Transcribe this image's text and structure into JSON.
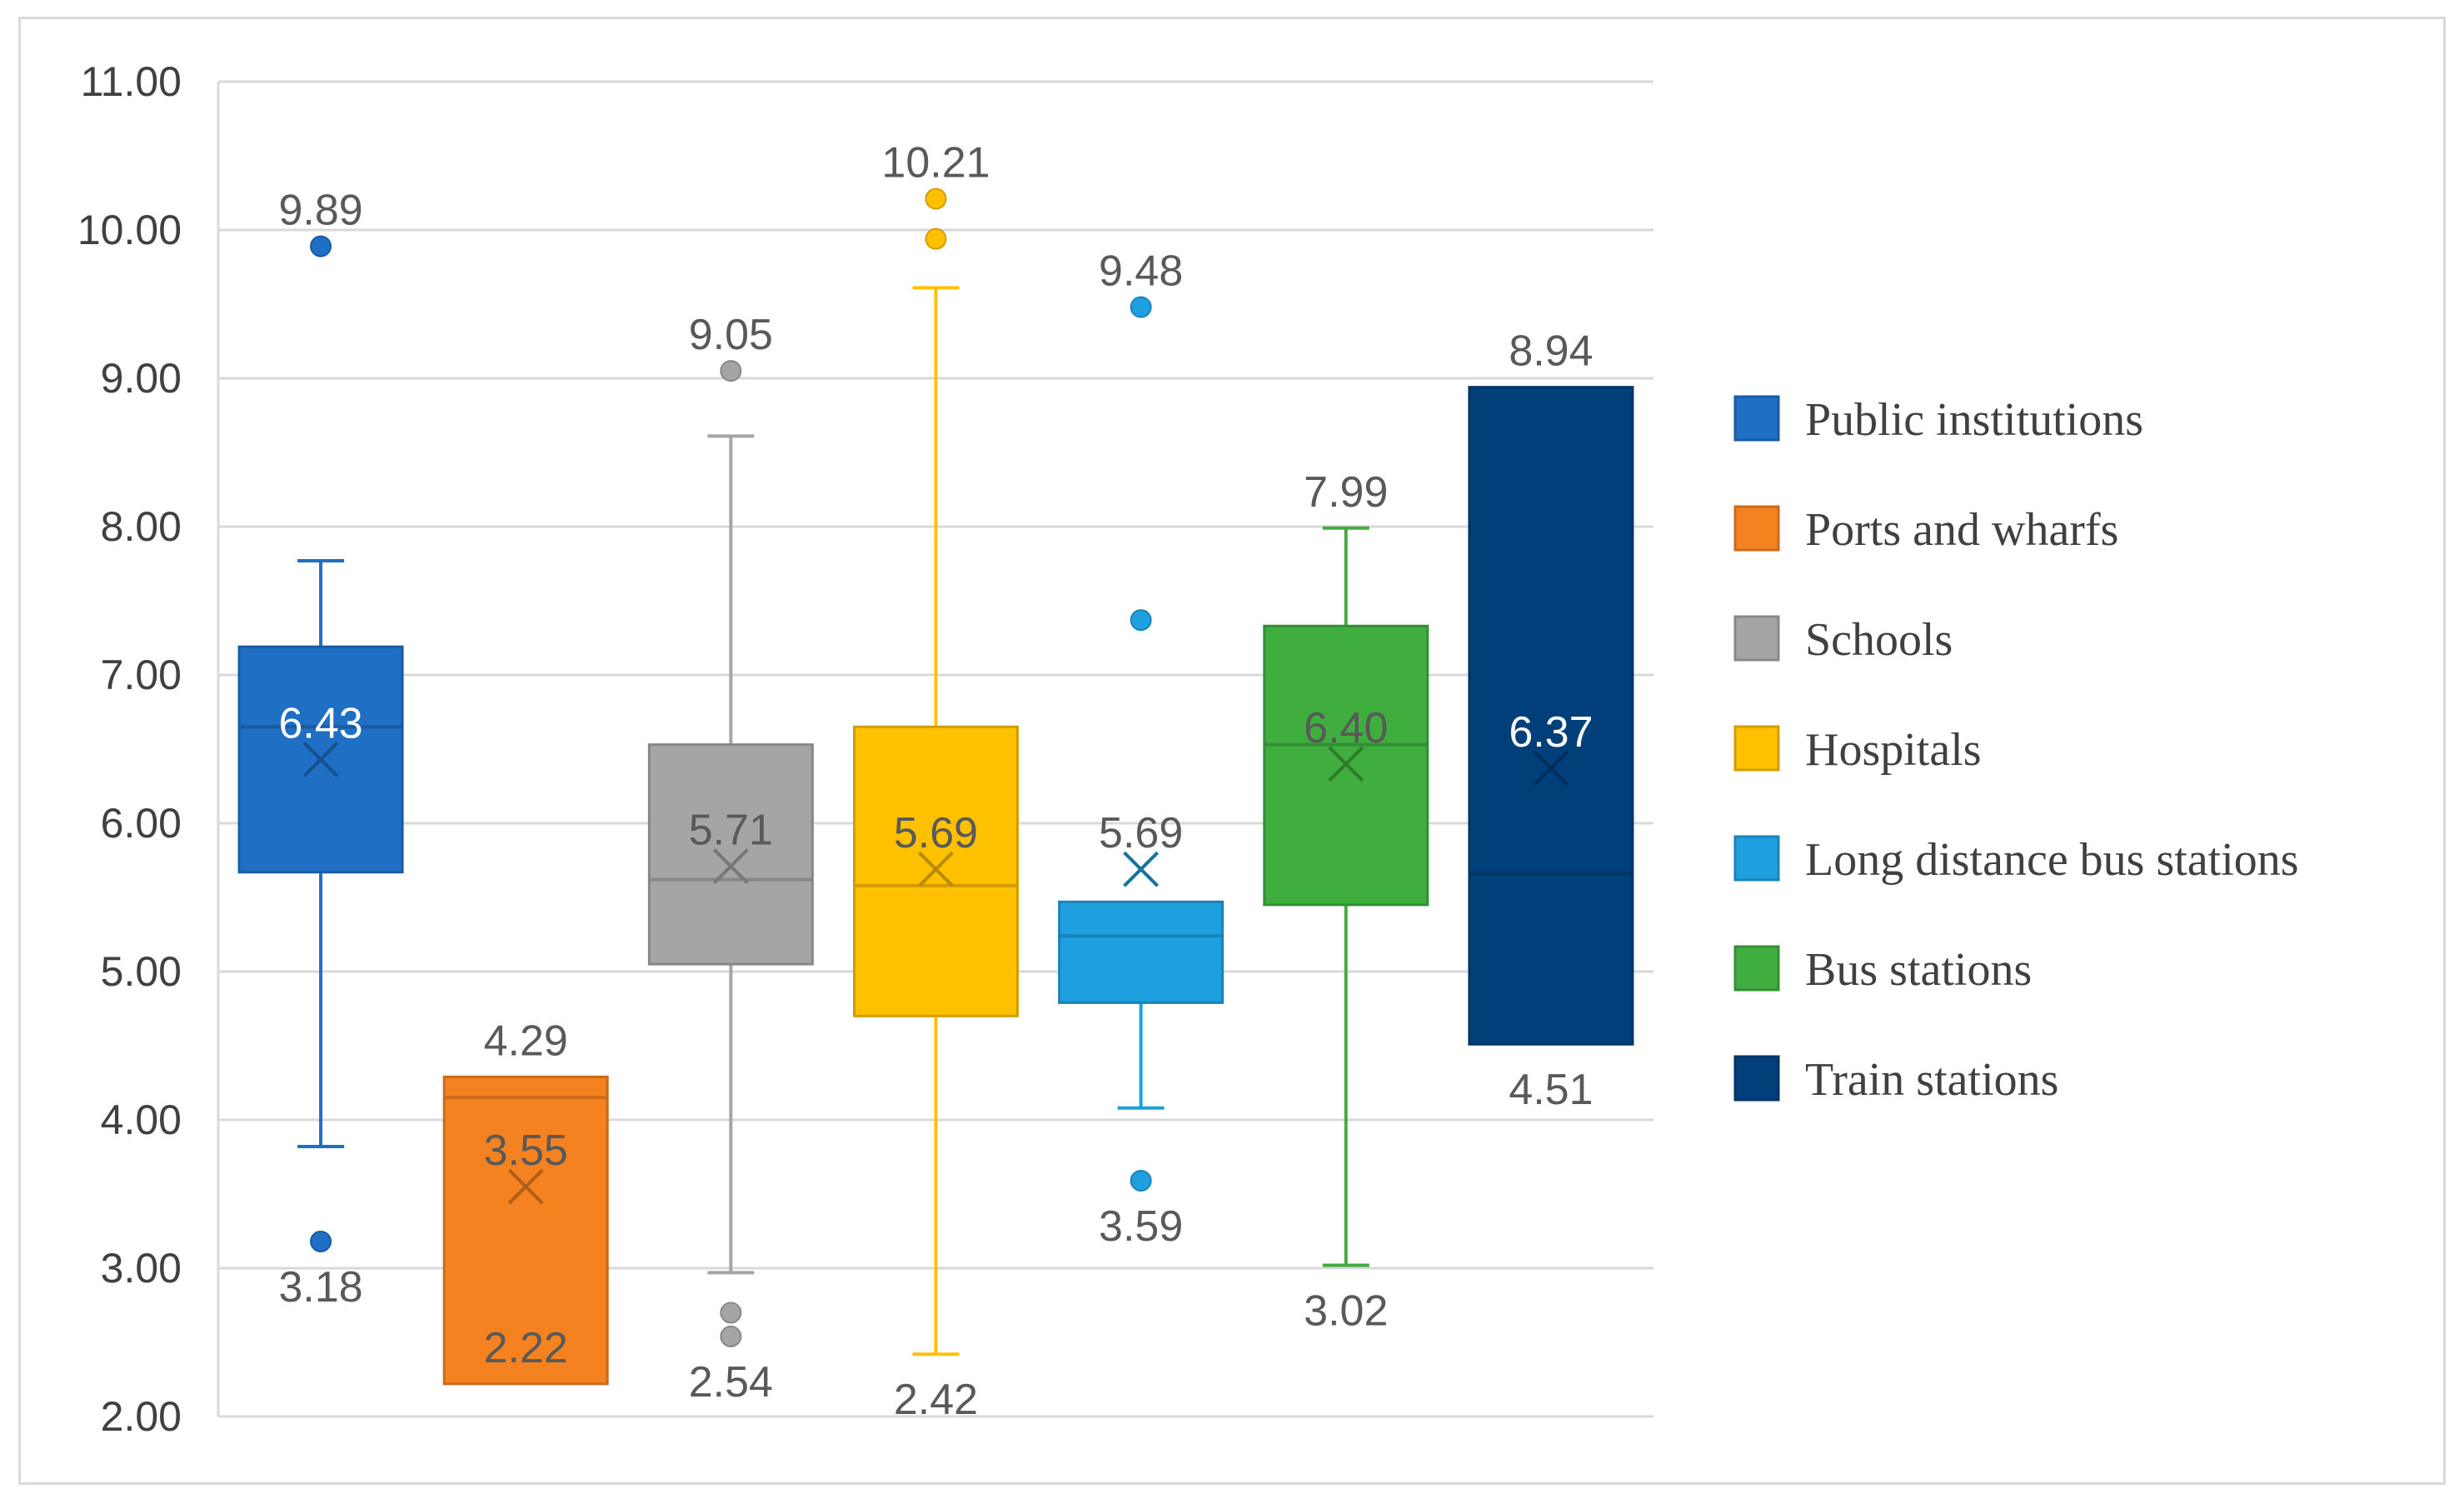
{
  "chart_data": {
    "type": "boxplot",
    "title": "",
    "xlabel": "",
    "ylabel": "",
    "ylim": [
      2.0,
      11.0
    ],
    "y_ticks": [
      "2.00",
      "3.00",
      "4.00",
      "5.00",
      "6.00",
      "7.00",
      "8.00",
      "9.00",
      "10.00",
      "11.00"
    ],
    "grid": true,
    "legend_position": "right",
    "series": [
      {
        "name": "Public institutions",
        "color": "#1f6fc5",
        "q1": 5.67,
        "median": 6.65,
        "q3": 7.19,
        "mean": 6.43,
        "whisker_low": 3.82,
        "whisker_high": 7.77,
        "outliers": [
          9.89,
          3.18
        ],
        "labels": [
          {
            "text": "9.89",
            "value": 9.89,
            "pos": "above",
            "color": "#595959"
          },
          {
            "text": "6.43",
            "value": 6.43,
            "pos": "above",
            "color": "#ffffff"
          },
          {
            "text": "3.18",
            "value": 3.18,
            "pos": "below",
            "color": "#595959"
          }
        ]
      },
      {
        "name": "Ports and wharfs",
        "color": "#f58220",
        "q1": 2.22,
        "median": 4.15,
        "q3": 4.29,
        "mean": 3.55,
        "whisker_low": 2.22,
        "whisker_high": 4.29,
        "outliers": [],
        "labels": [
          {
            "text": "4.29",
            "value": 4.29,
            "pos": "above",
            "color": "#595959"
          },
          {
            "text": "3.55",
            "value": 3.55,
            "pos": "above",
            "color": "#595959"
          },
          {
            "text": "2.22",
            "value": 2.22,
            "pos": "above",
            "color": "#595959"
          }
        ]
      },
      {
        "name": "Schools",
        "color": "#a5a5a5",
        "q1": 5.05,
        "median": 5.62,
        "q3": 6.53,
        "mean": 5.71,
        "whisker_low": 2.97,
        "whisker_high": 8.61,
        "outliers": [
          9.05,
          2.7,
          2.54
        ],
        "labels": [
          {
            "text": "9.05",
            "value": 9.05,
            "pos": "above",
            "color": "#595959"
          },
          {
            "text": "5.71",
            "value": 5.71,
            "pos": "above",
            "color": "#595959"
          },
          {
            "text": "2.54",
            "value": 2.54,
            "pos": "below",
            "color": "#595959"
          }
        ]
      },
      {
        "name": "Hospitals",
        "color": "#ffc000",
        "q1": 4.7,
        "median": 5.58,
        "q3": 6.65,
        "mean": 5.69,
        "whisker_low": 2.42,
        "whisker_high": 9.61,
        "outliers": [
          10.21,
          9.94
        ],
        "labels": [
          {
            "text": "10.21",
            "value": 10.21,
            "pos": "above",
            "color": "#595959"
          },
          {
            "text": "5.69",
            "value": 5.69,
            "pos": "above",
            "color": "#595959"
          },
          {
            "text": "2.42",
            "value": 2.42,
            "pos": "below",
            "color": "#595959"
          }
        ]
      },
      {
        "name": "Long distance bus stations",
        "color": "#1ea0e0",
        "q1": 4.79,
        "median": 5.24,
        "q3": 5.47,
        "mean": 5.69,
        "whisker_low": 4.08,
        "whisker_high": 5.47,
        "outliers": [
          9.48,
          7.37,
          3.59
        ],
        "labels": [
          {
            "text": "9.48",
            "value": 9.48,
            "pos": "above",
            "color": "#595959"
          },
          {
            "text": "5.69",
            "value": 5.69,
            "pos": "above",
            "color": "#595959"
          },
          {
            "text": "3.59",
            "value": 3.59,
            "pos": "below",
            "color": "#595959"
          }
        ]
      },
      {
        "name": "Bus stations",
        "color": "#3fae3f",
        "q1": 5.45,
        "median": 6.53,
        "q3": 7.33,
        "mean": 6.4,
        "whisker_low": 3.02,
        "whisker_high": 7.99,
        "outliers": [],
        "labels": [
          {
            "text": "7.99",
            "value": 7.99,
            "pos": "above",
            "color": "#595959"
          },
          {
            "text": "6.40",
            "value": 6.4,
            "pos": "above",
            "color": "#595959"
          },
          {
            "text": "3.02",
            "value": 3.02,
            "pos": "below",
            "color": "#595959"
          }
        ]
      },
      {
        "name": "Train stations",
        "color": "#003f7a",
        "q1": 4.51,
        "median": 5.66,
        "q3": 8.94,
        "mean": 6.37,
        "whisker_low": 4.51,
        "whisker_high": 8.94,
        "outliers": [],
        "labels": [
          {
            "text": "8.94",
            "value": 8.94,
            "pos": "above",
            "color": "#595959"
          },
          {
            "text": "6.37",
            "value": 6.37,
            "pos": "above",
            "color": "#ffffff"
          },
          {
            "text": "4.51",
            "value": 4.51,
            "pos": "below",
            "color": "#595959"
          }
        ]
      }
    ]
  }
}
